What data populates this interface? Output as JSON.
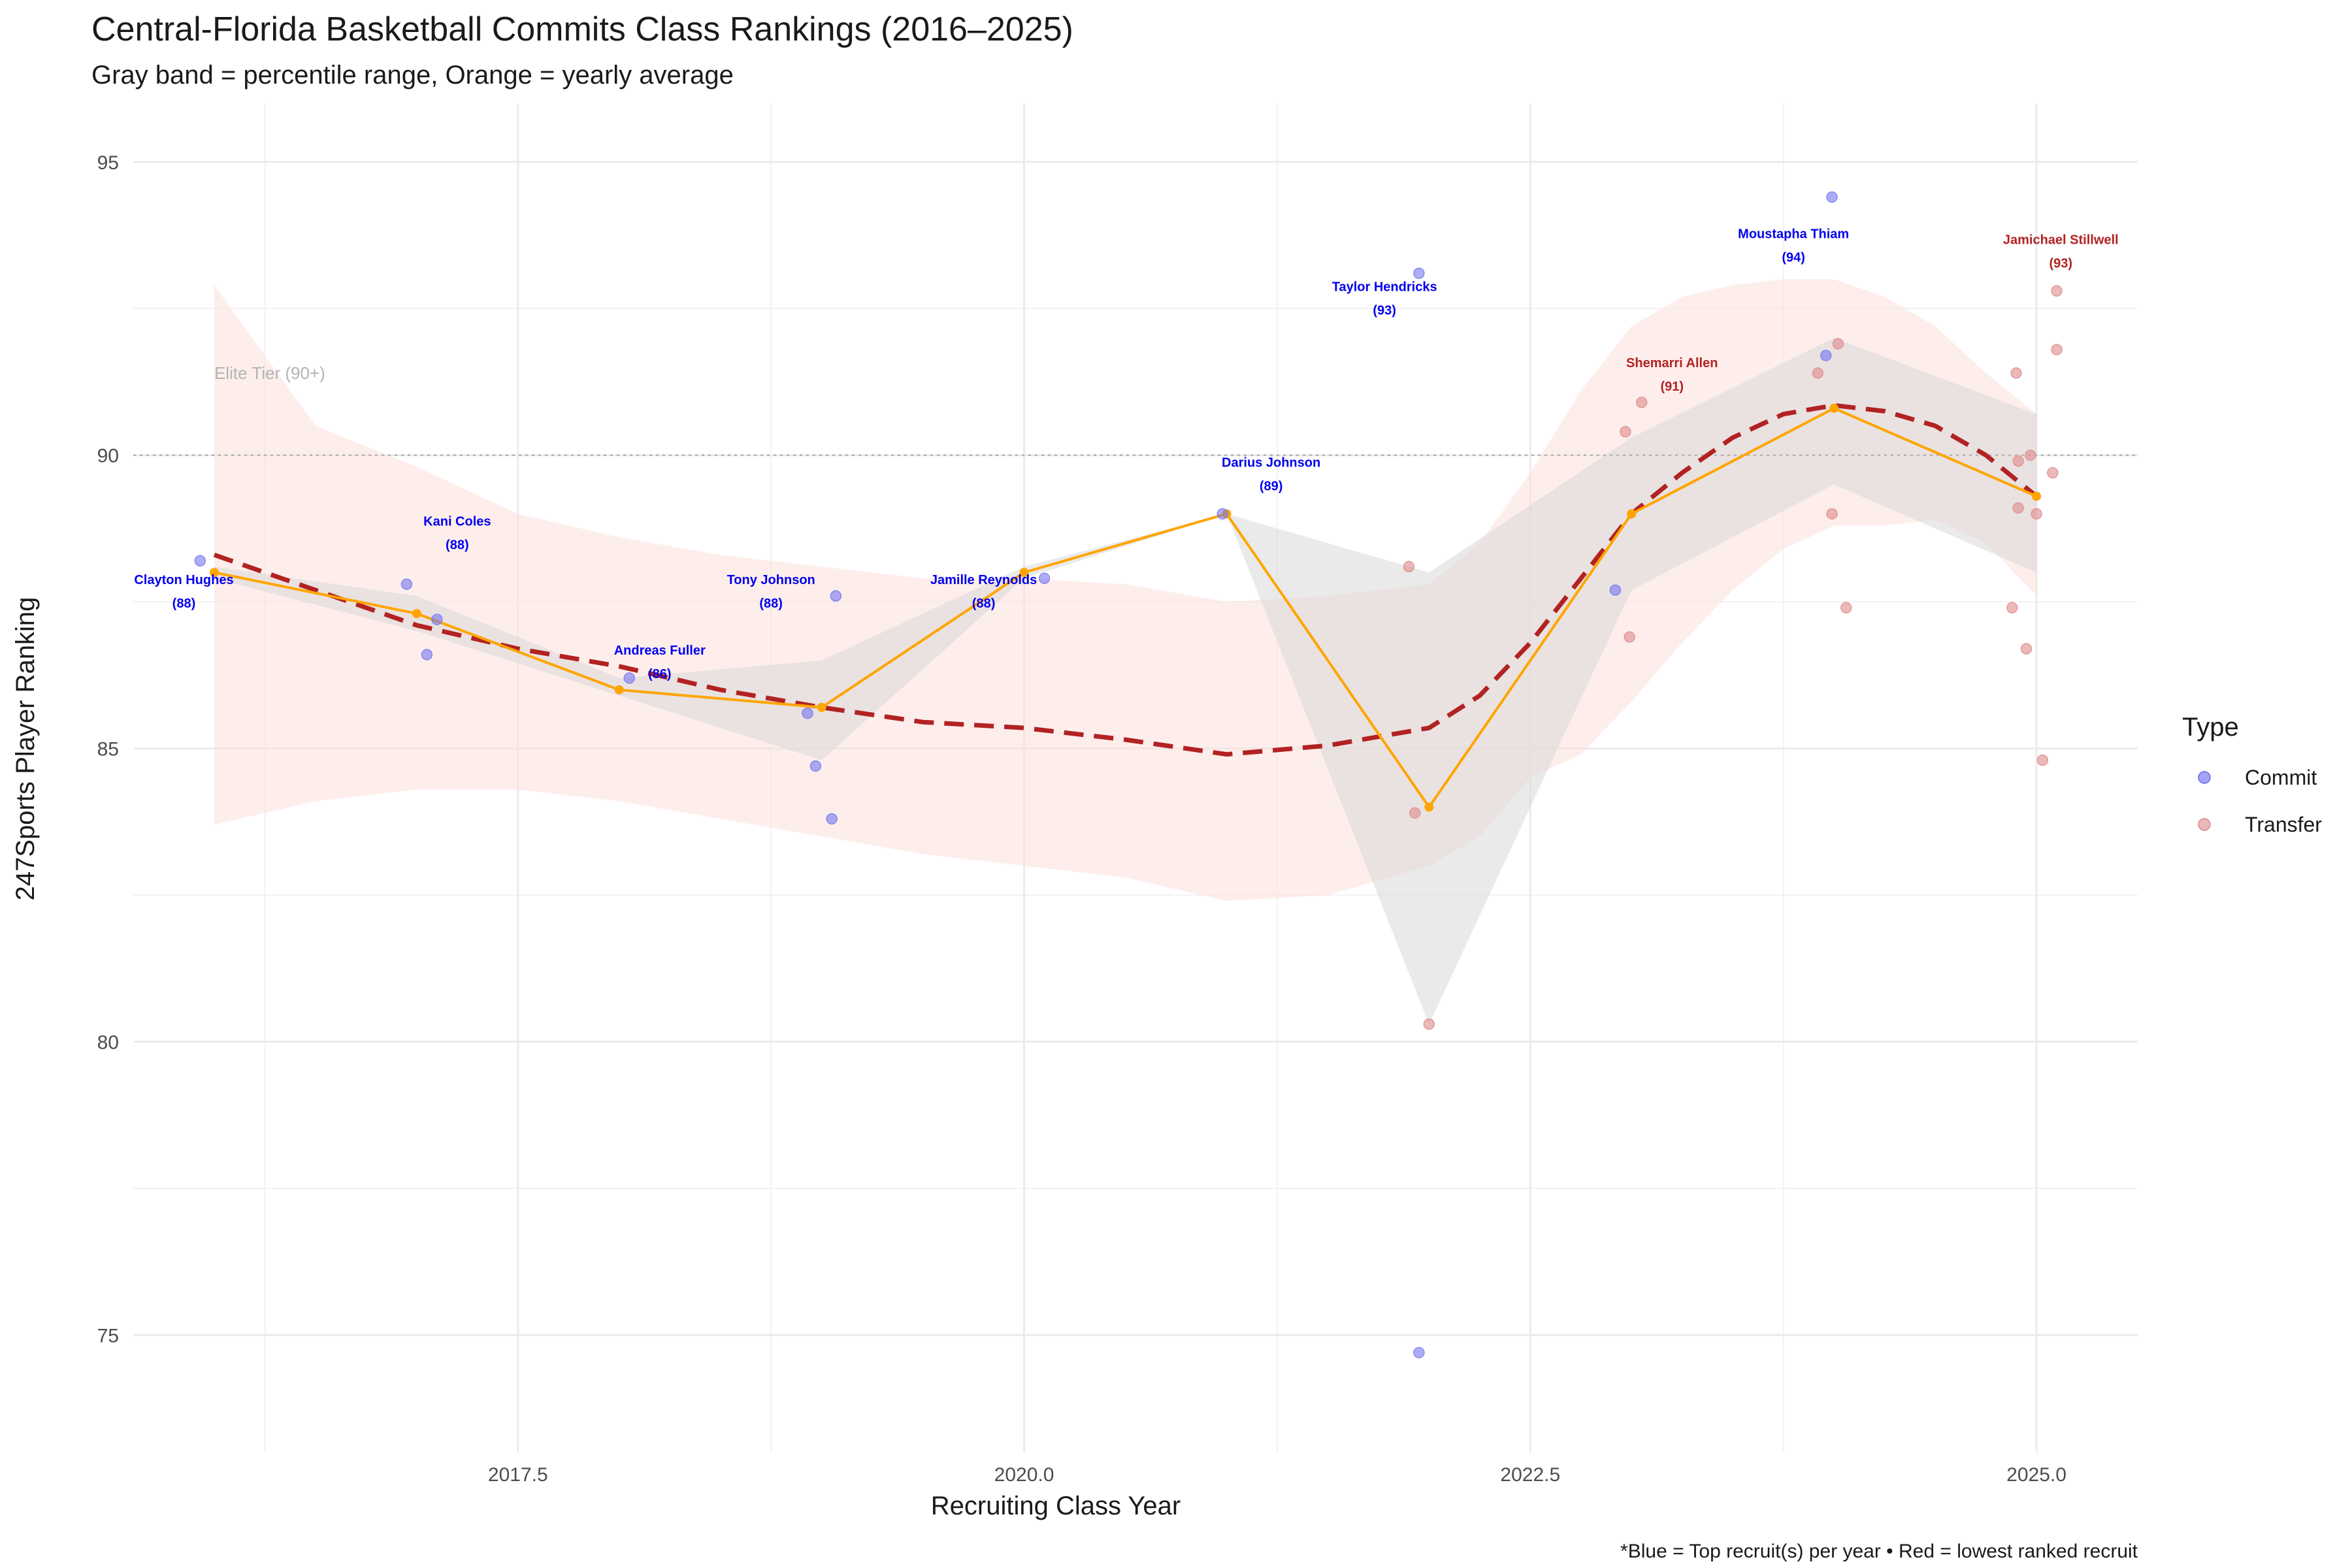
{
  "chart_data": {
    "type": "scatter",
    "title": "Central-Florida Basketball Commits Class Rankings (2016–2025)",
    "subtitle": "Gray band = percentile range, Orange = yearly average",
    "xlabel": "Recruiting Class Year",
    "ylabel": "247Sports Player Ranking",
    "caption": "*Blue = Top recruit(s) per year • Red = lowest ranked recruit",
    "xlim": [
      2015.6,
      2025.5
    ],
    "ylim": [
      73,
      96
    ],
    "x_ticks": [
      2017.5,
      2020.0,
      2022.5,
      2025.0
    ],
    "x_tick_labels": [
      "2017.5",
      "2020.0",
      "2022.5",
      "2025.0"
    ],
    "y_ticks": [
      75,
      80,
      85,
      90,
      95
    ],
    "y_tick_labels": [
      "75",
      "80",
      "85",
      "90",
      "95"
    ],
    "grid": true,
    "legend": {
      "title": "Type",
      "position": "right",
      "entries": [
        {
          "label": "Commit",
          "color": "#6666ee"
        },
        {
          "label": "Transfer",
          "color": "#dd8888"
        }
      ]
    },
    "reference_line": {
      "y": 90,
      "label": "Elite Tier (90+)",
      "label_x": 2016.0
    },
    "colors": {
      "commit": "#7777f0",
      "transfer": "#e08a8a",
      "average": "#ffa500",
      "trend": "#b22222",
      "gray_band": "#d9d9d9",
      "pink_band": "#fbe0dc",
      "blue_label": "#0000ee",
      "red_label": "#b22222"
    },
    "points": [
      {
        "x": 2015.93,
        "y": 88.2,
        "type": "Commit"
      },
      {
        "x": 2016.95,
        "y": 87.8,
        "type": "Commit"
      },
      {
        "x": 2017.05,
        "y": 86.6,
        "type": "Commit"
      },
      {
        "x": 2017.1,
        "y": 87.2,
        "type": "Commit"
      },
      {
        "x": 2018.05,
        "y": 86.2,
        "type": "Commit"
      },
      {
        "x": 2018.93,
        "y": 85.6,
        "type": "Commit"
      },
      {
        "x": 2018.97,
        "y": 84.7,
        "type": "Commit"
      },
      {
        "x": 2019.05,
        "y": 83.8,
        "type": "Commit"
      },
      {
        "x": 2019.07,
        "y": 87.6,
        "type": "Commit"
      },
      {
        "x": 2020.1,
        "y": 87.9,
        "type": "Commit"
      },
      {
        "x": 2020.98,
        "y": 89.0,
        "type": "Commit"
      },
      {
        "x": 2021.95,
        "y": 93.1,
        "type": "Commit"
      },
      {
        "x": 2021.95,
        "y": 74.7,
        "type": "Commit"
      },
      {
        "x": 2021.9,
        "y": 88.1,
        "type": "Transfer"
      },
      {
        "x": 2021.93,
        "y": 83.9,
        "type": "Transfer"
      },
      {
        "x": 2022.0,
        "y": 80.3,
        "type": "Transfer"
      },
      {
        "x": 2022.92,
        "y": 87.7,
        "type": "Commit"
      },
      {
        "x": 2022.97,
        "y": 90.4,
        "type": "Transfer"
      },
      {
        "x": 2022.99,
        "y": 86.9,
        "type": "Transfer"
      },
      {
        "x": 2023.05,
        "y": 90.9,
        "type": "Transfer"
      },
      {
        "x": 2023.92,
        "y": 91.4,
        "type": "Transfer"
      },
      {
        "x": 2023.96,
        "y": 91.7,
        "type": "Commit"
      },
      {
        "x": 2023.99,
        "y": 94.4,
        "type": "Commit"
      },
      {
        "x": 2023.99,
        "y": 89.0,
        "type": "Transfer"
      },
      {
        "x": 2024.02,
        "y": 91.9,
        "type": "Transfer"
      },
      {
        "x": 2024.06,
        "y": 87.4,
        "type": "Transfer"
      },
      {
        "x": 2024.88,
        "y": 87.4,
        "type": "Transfer"
      },
      {
        "x": 2024.9,
        "y": 91.4,
        "type": "Transfer"
      },
      {
        "x": 2024.91,
        "y": 89.9,
        "type": "Transfer"
      },
      {
        "x": 2024.91,
        "y": 89.1,
        "type": "Transfer"
      },
      {
        "x": 2024.95,
        "y": 86.7,
        "type": "Transfer"
      },
      {
        "x": 2024.97,
        "y": 90.0,
        "type": "Transfer"
      },
      {
        "x": 2025.0,
        "y": 89.0,
        "type": "Transfer"
      },
      {
        "x": 2025.03,
        "y": 84.8,
        "type": "Transfer"
      },
      {
        "x": 2025.08,
        "y": 89.7,
        "type": "Transfer"
      },
      {
        "x": 2025.1,
        "y": 91.8,
        "type": "Transfer"
      },
      {
        "x": 2025.1,
        "y": 92.8,
        "type": "Transfer"
      }
    ],
    "yearly_average": {
      "x": [
        2016,
        2017,
        2018,
        2019,
        2020,
        2021,
        2022,
        2023,
        2024,
        2025
      ],
      "y": [
        88.0,
        87.3,
        86.0,
        85.7,
        88.0,
        89.0,
        84.0,
        89.0,
        90.8,
        89.3
      ]
    },
    "trend": {
      "x": [
        2016,
        2016.5,
        2017,
        2017.5,
        2018,
        2018.5,
        2019,
        2019.5,
        2020,
        2020.5,
        2021,
        2021.5,
        2022,
        2022.25,
        2022.5,
        2022.75,
        2023,
        2023.25,
        2023.5,
        2023.75,
        2024,
        2024.25,
        2024.5,
        2024.75,
        2025
      ],
      "y": [
        88.3,
        87.7,
        87.1,
        86.7,
        86.4,
        86.0,
        85.7,
        85.45,
        85.35,
        85.15,
        84.9,
        85.05,
        85.35,
        85.9,
        86.8,
        87.9,
        89.0,
        89.7,
        90.3,
        90.7,
        90.85,
        90.75,
        90.5,
        90.0,
        89.3
      ]
    },
    "gray_band": {
      "x": [
        2016,
        2017,
        2018,
        2019,
        2020,
        2021,
        2022,
        2023,
        2024,
        2025
      ],
      "upper": [
        88.1,
        87.6,
        86.2,
        86.5,
        88.1,
        89.0,
        88.0,
        90.3,
        92.0,
        90.7
      ],
      "lower": [
        87.9,
        87.0,
        85.9,
        84.8,
        87.9,
        89.0,
        80.3,
        87.7,
        89.5,
        88.0
      ]
    },
    "pink_band": {
      "x": [
        2016,
        2016.5,
        2017,
        2017.5,
        2018,
        2018.5,
        2019,
        2019.5,
        2020,
        2020.5,
        2021,
        2021.5,
        2022,
        2022.25,
        2022.5,
        2022.75,
        2023,
        2023.25,
        2023.5,
        2023.75,
        2024,
        2024.25,
        2024.5,
        2024.75,
        2025
      ],
      "upper": [
        92.9,
        90.5,
        89.8,
        89.0,
        88.6,
        88.3,
        88.1,
        87.9,
        87.9,
        87.8,
        87.5,
        87.6,
        87.8,
        88.5,
        89.7,
        91.1,
        92.2,
        92.7,
        92.9,
        93.0,
        93.0,
        92.7,
        92.2,
        91.4,
        90.7
      ],
      "lower": [
        83.7,
        84.1,
        84.3,
        84.3,
        84.1,
        83.8,
        83.5,
        83.2,
        83.0,
        82.8,
        82.4,
        82.5,
        83.0,
        83.5,
        84.5,
        84.9,
        85.8,
        86.8,
        87.7,
        88.4,
        88.8,
        88.8,
        88.9,
        88.5,
        87.6
      ]
    },
    "annotations": [
      {
        "name": "Clayton Hughes",
        "rank": "(88)",
        "x": 2015.85,
        "y": 87.8,
        "color": "blue"
      },
      {
        "name": "Kani Coles",
        "rank": "(88)",
        "x": 2017.2,
        "y": 88.8,
        "color": "blue"
      },
      {
        "name": "Andreas Fuller",
        "rank": "(86)",
        "x": 2018.2,
        "y": 86.6,
        "color": "blue"
      },
      {
        "name": "Tony Johnson",
        "rank": "(88)",
        "x": 2018.75,
        "y": 87.8,
        "color": "blue"
      },
      {
        "name": "Jamille Reynolds",
        "rank": "(88)",
        "x": 2019.8,
        "y": 87.8,
        "color": "blue"
      },
      {
        "name": "Darius Johnson",
        "rank": "(89)",
        "x": 2021.22,
        "y": 89.8,
        "color": "blue"
      },
      {
        "name": "Taylor Hendricks",
        "rank": "(93)",
        "x": 2021.78,
        "y": 92.8,
        "color": "blue"
      },
      {
        "name": "Shemarri Allen",
        "rank": "(91)",
        "x": 2023.2,
        "y": 91.5,
        "color": "red"
      },
      {
        "name": "Moustapha Thiam",
        "rank": "(94)",
        "x": 2023.8,
        "y": 93.7,
        "color": "blue"
      },
      {
        "name": "Jamichael Stillwell",
        "rank": "(93)",
        "x": 2025.12,
        "y": 93.6,
        "color": "red"
      }
    ]
  }
}
